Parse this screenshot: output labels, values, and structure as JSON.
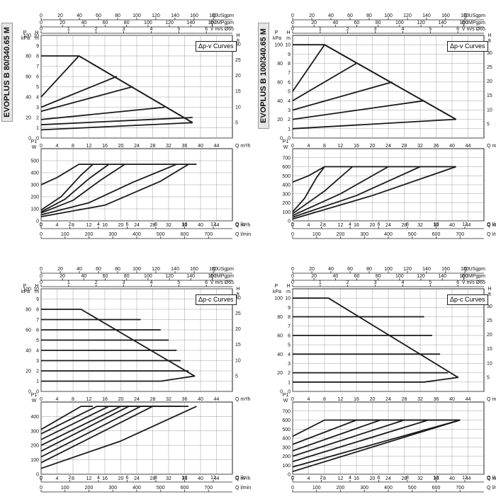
{
  "sidebar_labels": [
    "EVOPLUS B 80/340.65 M",
    "EVOPLUS B 100/340.65 M"
  ],
  "colors": {
    "curve": "#1a1a1a",
    "grid": "#888888",
    "tab_bg": "#e6e6e6"
  },
  "axis_text": {
    "usgpm": "Q USgpm",
    "impgpm": "Q IMPgpm",
    "velocity": "V m/s Ø65",
    "flow_m3h": "Q m³/h",
    "flow_ls": "Q l/s",
    "flow_lmin": "Q l/min",
    "p_kpa": "kPa",
    "p_label": "P",
    "h_m": "m",
    "h_ft": "ft",
    "h_label": "H",
    "p1": "P1",
    "w": "W"
  },
  "chart_data": [
    {
      "id": "80-dpv",
      "type": "line",
      "sidebar": 0,
      "legend": "Δp-v Curves",
      "x_top": {
        "usgpm": [
          0,
          20,
          40,
          60,
          80,
          100,
          120,
          140,
          160,
          180
        ],
        "impgpm": [
          0,
          20,
          40,
          60,
          80,
          100,
          120,
          140,
          160
        ],
        "velocity": [
          0,
          1,
          2,
          3,
          4,
          5,
          6
        ]
      },
      "head": {
        "xlim": [
          0,
          48
        ],
        "ylim": [
          0,
          10
        ],
        "x_ticks": [
          0,
          4,
          8,
          12,
          16,
          20,
          24,
          28,
          32,
          36,
          40,
          44
        ],
        "y_ticks_m": [
          0,
          1,
          2,
          3,
          4,
          5,
          6,
          7,
          8,
          9,
          10
        ],
        "y_ticks_kpa": [
          0,
          20,
          40,
          60,
          80,
          100
        ],
        "y_ticks_ft": [
          5,
          10,
          15,
          20,
          25,
          30
        ],
        "series": [
          {
            "x": [
              0,
              9.5,
              38
            ],
            "y": [
              8,
              8,
              1.5
            ]
          },
          {
            "x": [
              0,
              9.5,
              38
            ],
            "y": [
              4,
              8,
              1.5
            ]
          },
          {
            "x": [
              0,
              19
            ],
            "y": [
              3,
              6
            ]
          },
          {
            "x": [
              0,
              23
            ],
            "y": [
              2.6,
              5
            ]
          },
          {
            "x": [
              0,
              31
            ],
            "y": [
              1.8,
              3
            ]
          },
          {
            "x": [
              0,
              38
            ],
            "y": [
              1.3,
              2
            ]
          },
          {
            "x": [
              0,
              38
            ],
            "y": [
              0.8,
              1.5
            ]
          }
        ]
      },
      "power": {
        "xlim": [
          0,
          48
        ],
        "ylim": [
          0,
          600
        ],
        "y_ticks": [
          0,
          100,
          200,
          300,
          400,
          500
        ],
        "x_ticks_m3h": [
          0,
          4,
          8,
          12,
          16,
          20,
          24,
          28,
          32,
          36,
          40,
          44
        ],
        "x_ticks_ls": [
          0,
          2,
          4,
          6,
          8,
          10,
          12
        ],
        "x_ticks_lmin": [
          0,
          100,
          200,
          300,
          400,
          500,
          600,
          700
        ],
        "series": [
          {
            "x": [
              0,
              4,
              8.5,
              9.5,
              39
            ],
            "y": [
              300,
              360,
              450,
              470,
              470
            ]
          },
          {
            "x": [
              0,
              5,
              10,
              13
            ],
            "y": [
              90,
              200,
              380,
              470
            ]
          },
          {
            "x": [
              0,
              6,
              12,
              17
            ],
            "y": [
              75,
              180,
              350,
              470
            ]
          },
          {
            "x": [
              0,
              8,
              15,
              21
            ],
            "y": [
              65,
              170,
              340,
              470
            ]
          },
          {
            "x": [
              0,
              12,
              23,
              34
            ],
            "y": [
              50,
              150,
              320,
              470
            ]
          },
          {
            "x": [
              0,
              16,
              30,
              37
            ],
            "y": [
              35,
              130,
              330,
              470
            ]
          }
        ]
      }
    },
    {
      "id": "100-dpv",
      "type": "line",
      "sidebar": 1,
      "legend": "Δp-v Curves",
      "x_top": {
        "usgpm": [
          0,
          20,
          40,
          60,
          80,
          100,
          120,
          140,
          160,
          180
        ],
        "impgpm": [
          0,
          20,
          40,
          60,
          80,
          100,
          120,
          140,
          160
        ],
        "velocity": [
          0,
          1,
          2,
          3,
          4,
          5,
          6
        ]
      },
      "head": {
        "xlim": [
          0,
          48
        ],
        "ylim": [
          0,
          11
        ],
        "x_ticks": [
          0,
          4,
          8,
          12,
          16,
          20,
          24,
          28,
          32,
          36,
          40,
          44
        ],
        "y_ticks_m": [
          0,
          1,
          2,
          3,
          4,
          5,
          6,
          7,
          8,
          9,
          10
        ],
        "y_ticks_kpa": [
          0,
          20,
          40,
          60,
          80,
          100
        ],
        "y_ticks_ft": [
          5,
          10,
          15,
          20,
          25,
          30
        ],
        "series": [
          {
            "x": [
              0,
              8,
              41
            ],
            "y": [
              10,
              10,
              2
            ]
          },
          {
            "x": [
              0,
              8,
              41
            ],
            "y": [
              5,
              10,
              2
            ]
          },
          {
            "x": [
              0,
              16
            ],
            "y": [
              4,
              8
            ]
          },
          {
            "x": [
              0,
              25
            ],
            "y": [
              3,
              6
            ]
          },
          {
            "x": [
              0,
              33
            ],
            "y": [
              2,
              4
            ]
          },
          {
            "x": [
              0,
              41
            ],
            "y": [
              1,
              2
            ]
          }
        ]
      },
      "power": {
        "xlim": [
          0,
          48
        ],
        "ylim": [
          0,
          800
        ],
        "y_ticks": [
          0,
          100,
          200,
          300,
          400,
          500,
          600,
          700
        ],
        "x_ticks_m3h": [
          0,
          4,
          8,
          12,
          16,
          20,
          24,
          28,
          32,
          36,
          40,
          44
        ],
        "x_ticks_ls": [
          0,
          2,
          4,
          6,
          8,
          10,
          12
        ],
        "x_ticks_lmin": [
          0,
          100,
          200,
          300,
          400,
          500,
          600,
          700
        ],
        "series": [
          {
            "x": [
              0,
              4,
              8,
              41
            ],
            "y": [
              430,
              500,
              600,
              600
            ]
          },
          {
            "x": [
              0,
              3,
              6,
              8
            ],
            "y": [
              100,
              250,
              480,
              600
            ]
          },
          {
            "x": [
              0,
              8,
              15
            ],
            "y": [
              80,
              330,
              600
            ]
          },
          {
            "x": [
              0,
              12,
              24
            ],
            "y": [
              60,
              300,
              600
            ]
          },
          {
            "x": [
              0,
              16,
              32
            ],
            "y": [
              40,
              280,
              600
            ]
          },
          {
            "x": [
              0,
              20,
              41
            ],
            "y": [
              20,
              280,
              600
            ]
          }
        ]
      }
    },
    {
      "id": "80-dpc",
      "type": "line",
      "sidebar": 0,
      "legend": "Δp-c Curves",
      "x_top": {
        "usgpm": [
          0,
          20,
          40,
          60,
          80,
          100,
          120,
          140,
          160,
          180
        ],
        "impgpm": [
          0,
          20,
          40,
          60,
          80,
          100,
          120,
          140,
          160
        ],
        "velocity": [
          0,
          1,
          2,
          3,
          4,
          5,
          6
        ]
      },
      "head": {
        "xlim": [
          0,
          48
        ],
        "ylim": [
          0,
          10
        ],
        "x_ticks": [
          0,
          4,
          8,
          12,
          16,
          20,
          24,
          28,
          32,
          36,
          40,
          44
        ],
        "y_ticks_m": [
          0,
          1,
          2,
          3,
          4,
          5,
          6,
          7,
          8,
          9,
          10
        ],
        "y_ticks_kpa": [
          0,
          20,
          40,
          60,
          80,
          100
        ],
        "y_ticks_ft": [
          5,
          10,
          15,
          20,
          25,
          30
        ],
        "series": [
          {
            "x": [
              0,
              10,
              38.5,
              30,
              0
            ],
            "y": [
              8,
              8,
              1.5,
              1,
              1
            ]
          },
          {
            "x": [
              0,
              25
            ],
            "y": [
              7,
              7
            ]
          },
          {
            "x": [
              0,
              30
            ],
            "y": [
              6,
              6
            ]
          },
          {
            "x": [
              0,
              32
            ],
            "y": [
              5,
              5
            ]
          },
          {
            "x": [
              0,
              34
            ],
            "y": [
              4,
              4
            ]
          },
          {
            "x": [
              0,
              35
            ],
            "y": [
              3,
              3
            ]
          },
          {
            "x": [
              0,
              37
            ],
            "y": [
              2,
              2
            ]
          }
        ]
      },
      "power": {
        "xlim": [
          0,
          48
        ],
        "ylim": [
          0,
          500
        ],
        "y_ticks": [
          0,
          100,
          200,
          300,
          400
        ],
        "x_ticks_m3h": [
          0,
          4,
          8,
          12,
          16,
          20,
          24,
          28,
          32,
          36,
          40,
          44
        ],
        "x_ticks_ls": [
          0,
          2,
          4,
          6,
          8,
          10,
          12
        ],
        "x_ticks_lmin": [
          0,
          100,
          200,
          300,
          400,
          500,
          600,
          700
        ],
        "series": [
          {
            "x": [
              0,
              10,
              13
            ],
            "y": [
              310,
              470,
              470
            ]
          },
          {
            "x": [
              0,
              14,
              18
            ],
            "y": [
              280,
              470,
              470
            ]
          },
          {
            "x": [
              0,
              17,
              23
            ],
            "y": [
              240,
              470,
              470
            ]
          },
          {
            "x": [
              0,
              20,
              27
            ],
            "y": [
              200,
              470,
              470
            ]
          },
          {
            "x": [
              0,
              22,
              32
            ],
            "y": [
              160,
              470,
              470
            ]
          },
          {
            "x": [
              0,
              25,
              35
            ],
            "y": [
              120,
              470,
              470
            ]
          },
          {
            "x": [
              0,
              28,
              37
            ],
            "y": [
              80,
              470,
              470
            ]
          },
          {
            "x": [
              0,
              20,
              39
            ],
            "y": [
              40,
              230,
              470
            ]
          }
        ]
      }
    },
    {
      "id": "100-dpc",
      "type": "line",
      "sidebar": 1,
      "legend": "Δp-c Curves",
      "x_top": {
        "usgpm": [
          0,
          20,
          40,
          60,
          80,
          100,
          120,
          140,
          160,
          180
        ],
        "impgpm": [
          0,
          20,
          40,
          60,
          80,
          100,
          120,
          140,
          160
        ],
        "velocity": [
          0,
          1,
          2,
          3,
          4,
          5,
          6
        ]
      },
      "head": {
        "xlim": [
          0,
          48
        ],
        "ylim": [
          0,
          11
        ],
        "x_ticks": [
          0,
          4,
          8,
          12,
          16,
          20,
          24,
          28,
          32,
          36,
          40,
          44
        ],
        "y_ticks_m": [
          0,
          1,
          2,
          3,
          4,
          5,
          6,
          7,
          8,
          9,
          10
        ],
        "y_ticks_kpa": [
          0,
          20,
          40,
          60,
          80,
          100
        ],
        "y_ticks_ft": [
          5,
          10,
          15,
          20,
          25,
          30
        ],
        "series": [
          {
            "x": [
              0,
              9,
              41.5,
              33,
              0
            ],
            "y": [
              10,
              10,
              1.5,
              1,
              1
            ]
          },
          {
            "x": [
              0,
              33
            ],
            "y": [
              8,
              8
            ]
          },
          {
            "x": [
              0,
              35
            ],
            "y": [
              6,
              6
            ]
          },
          {
            "x": [
              0,
              37
            ],
            "y": [
              4,
              4
            ]
          },
          {
            "x": [
              0,
              39
            ],
            "y": [
              2,
              2
            ]
          }
        ]
      },
      "power": {
        "xlim": [
          0,
          48
        ],
        "ylim": [
          0,
          800
        ],
        "y_ticks": [
          0,
          100,
          200,
          300,
          400,
          500,
          600,
          700
        ],
        "x_ticks_m3h": [
          0,
          4,
          8,
          12,
          16,
          20,
          24,
          28,
          32,
          36,
          40,
          44
        ],
        "x_ticks_ls": [
          0,
          2,
          4,
          6,
          8,
          10,
          12
        ],
        "x_ticks_lmin": [
          0,
          100,
          200,
          300,
          400,
          500,
          600,
          700
        ],
        "series": [
          {
            "x": [
              0,
              8,
              42
            ],
            "y": [
              420,
              600,
              600
            ]
          },
          {
            "x": [
              0,
              16,
              42
            ],
            "y": [
              330,
              600,
              600
            ]
          },
          {
            "x": [
              0,
              22,
              42
            ],
            "y": [
              260,
              600,
              600
            ]
          },
          {
            "x": [
              0,
              28,
              42
            ],
            "y": [
              200,
              600,
              600
            ]
          },
          {
            "x": [
              0,
              34,
              42
            ],
            "y": [
              140,
              600,
              600
            ]
          },
          {
            "x": [
              0,
              42
            ],
            "y": [
              80,
              600
            ]
          },
          {
            "x": [
              0,
              42
            ],
            "y": [
              30,
              600
            ]
          }
        ]
      }
    }
  ]
}
